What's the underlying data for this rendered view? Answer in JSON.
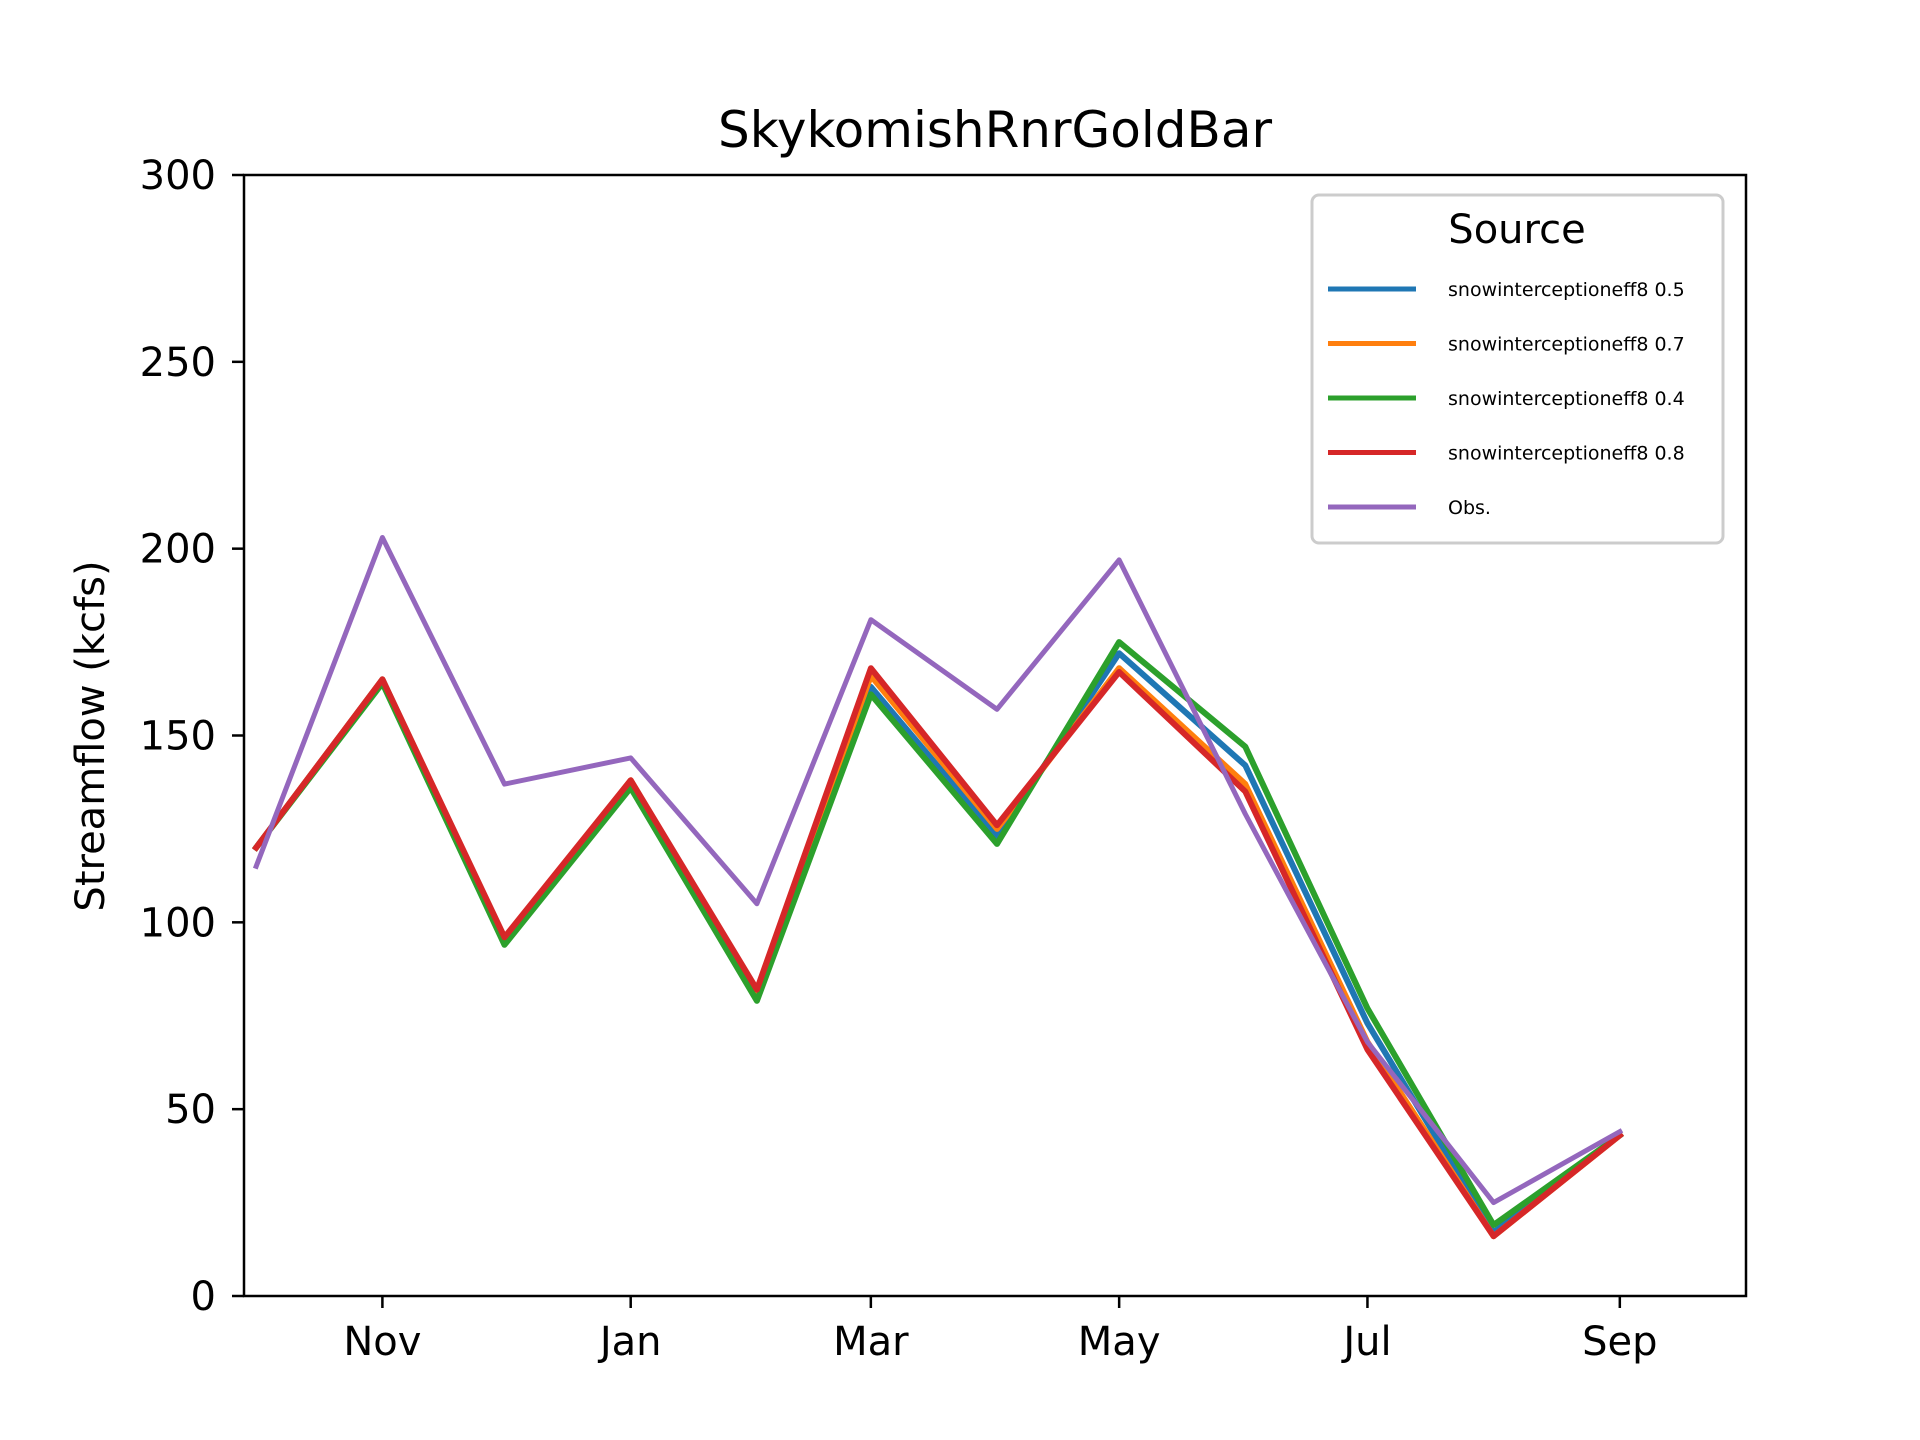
{
  "chart_data": {
    "type": "line",
    "title": "SkykomishRnrGoldBar",
    "xlabel": "",
    "ylabel": "Streamflow (kcfs)",
    "ylim": [
      0,
      300
    ],
    "yticks": [
      0,
      50,
      100,
      150,
      200,
      250,
      300
    ],
    "x": [
      "2000-10-01",
      "2000-11-01",
      "2000-12-01",
      "2001-01-01",
      "2001-02-01",
      "2001-03-01",
      "2001-04-01",
      "2001-05-01",
      "2001-06-01",
      "2001-07-01",
      "2001-08-01",
      "2001-09-01"
    ],
    "xlim": [
      "2000-09-28",
      "2001-10-02"
    ],
    "xticks": [
      {
        "date": "2000-11-01",
        "label": "Nov"
      },
      {
        "date": "2001-01-01",
        "label": "Jan"
      },
      {
        "date": "2001-03-01",
        "label": "Mar"
      },
      {
        "date": "2001-05-01",
        "label": "May"
      },
      {
        "date": "2001-07-01",
        "label": "Jul"
      },
      {
        "date": "2001-09-01",
        "label": "Sep"
      }
    ],
    "legend": {
      "title": "Source",
      "location": "top-right"
    },
    "grid": false,
    "series": [
      {
        "name": "snowinterceptioneff8 0.5",
        "color": "#1f77b4",
        "values": [
          120,
          165,
          95,
          137,
          80,
          163,
          123,
          172,
          142,
          73,
          17,
          43
        ]
      },
      {
        "name": "snowinterceptioneff8 0.7",
        "color": "#ff7f0e",
        "values": [
          120,
          165,
          95,
          138,
          81,
          166,
          125,
          168,
          137,
          68,
          16,
          43
        ]
      },
      {
        "name": "snowinterceptioneff8 0.4",
        "color": "#2ca02c",
        "values": [
          120,
          164,
          94,
          136,
          79,
          161,
          121,
          175,
          147,
          77,
          19,
          43
        ]
      },
      {
        "name": "snowinterceptioneff8 0.8",
        "color": "#d62728",
        "values": [
          120,
          165,
          96,
          138,
          82,
          168,
          126,
          167,
          135,
          66,
          16,
          43
        ]
      },
      {
        "name": "Obs.",
        "color": "#9467bd",
        "values": [
          115,
          203,
          137,
          144,
          105,
          181,
          157,
          197,
          129,
          68,
          25,
          44
        ]
      }
    ]
  }
}
